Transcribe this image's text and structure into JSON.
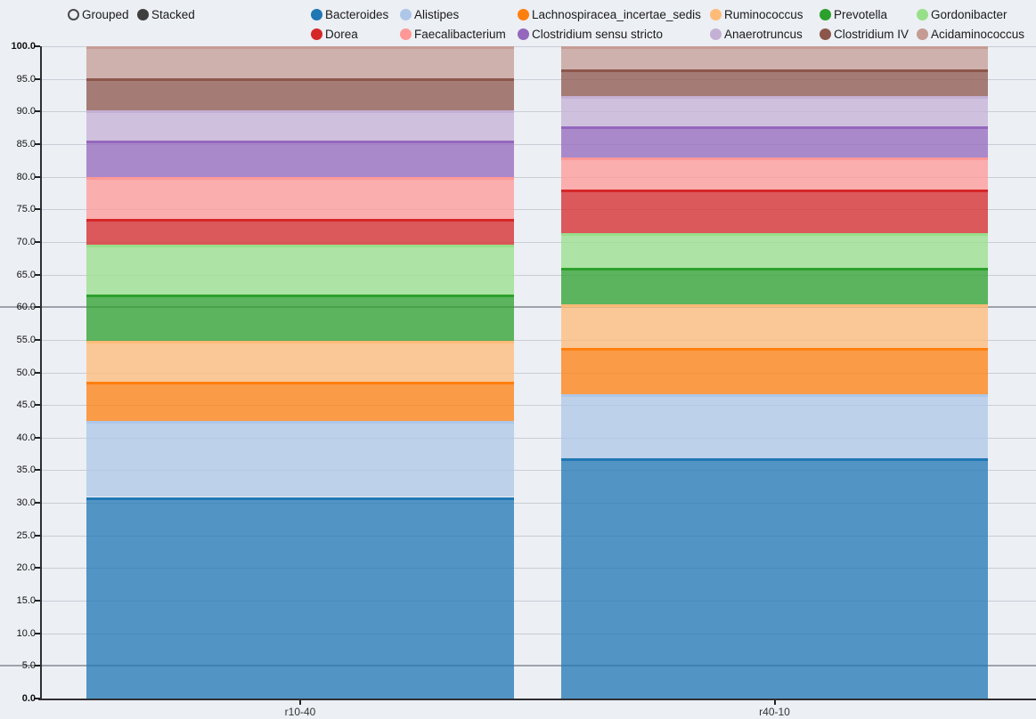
{
  "controls": {
    "grouped_label": "Grouped",
    "stacked_label": "Stacked",
    "selected_mode": "Stacked"
  },
  "axis": {
    "y_tick_labels": [
      "100.0",
      "95.0",
      "90.0",
      "85.0",
      "80.0",
      "75.0",
      "70.0",
      "65.0",
      "60.0",
      "55.0",
      "50.0",
      "45.0",
      "40.0",
      "35.0",
      "30.0",
      "25.0",
      "20.0",
      "15.0",
      "10.0",
      "5.0",
      "0.0"
    ],
    "x_tick_labels": [
      "r10-40",
      "r40-10"
    ]
  },
  "chart_data": {
    "type": "bar",
    "stacked": true,
    "categories": [
      "r10-40",
      "r40-10"
    ],
    "series": [
      {
        "name": "Bacteroides",
        "color": "#1f77b4",
        "values": [
          30.9,
          36.8
        ]
      },
      {
        "name": "Alistipes",
        "color": "#aec7e8",
        "values": [
          11.6,
          9.9
        ]
      },
      {
        "name": "Lachnospiracea_incertae_sedis",
        "color": "#ff7f0e",
        "values": [
          6.1,
          7.1
        ]
      },
      {
        "name": "Ruminococcus",
        "color": "#ffbb78",
        "values": [
          6.2,
          6.7
        ]
      },
      {
        "name": "Prevotella",
        "color": "#2ca02c",
        "values": [
          7.1,
          5.5
        ]
      },
      {
        "name": "Gordonibacter",
        "color": "#98df8a",
        "values": [
          7.7,
          5.4
        ]
      },
      {
        "name": "Dorea",
        "color": "#d62728",
        "values": [
          3.9,
          6.6
        ]
      },
      {
        "name": "Faecalibacterium",
        "color": "#ff9896",
        "values": [
          6.5,
          4.9
        ]
      },
      {
        "name": "Clostridium sensu stricto",
        "color": "#9467bd",
        "values": [
          5.5,
          4.8
        ]
      },
      {
        "name": "Anaerotruncus",
        "color": "#c5b0d5",
        "values": [
          4.7,
          4.7
        ]
      },
      {
        "name": "Clostridium IV",
        "color": "#8c564b",
        "values": [
          4.9,
          4.1
        ]
      },
      {
        "name": "Acidaminococcus",
        "color": "#c49c94",
        "values": [
          4.9,
          3.5
        ]
      }
    ],
    "ylim": [
      0,
      100
    ],
    "ytick_step": 5,
    "grid": true,
    "emphasized_gridlines": [
      60,
      5
    ],
    "bar_alpha": 0.75,
    "legend_position": "top"
  }
}
